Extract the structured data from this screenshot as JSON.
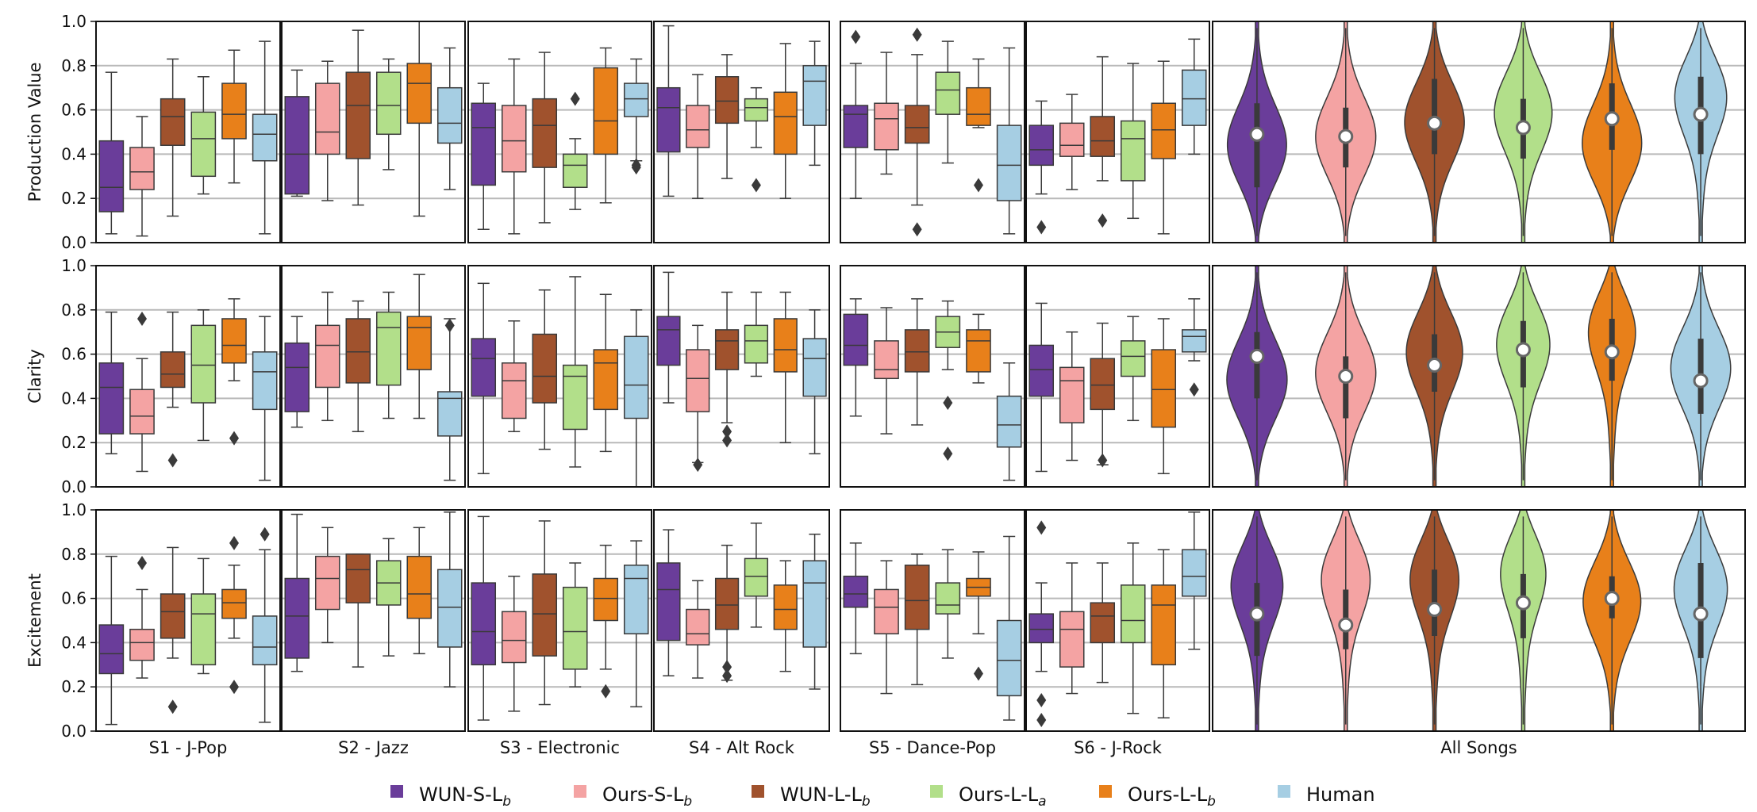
{
  "chart_data": {
    "type": "box",
    "title": "",
    "ylim": [
      0,
      1
    ],
    "yticks": [
      "0.0",
      "0.2",
      "0.4",
      "0.6",
      "0.8",
      "1.0"
    ],
    "grid": true,
    "metrics": [
      "Production Value",
      "Clarity",
      "Excitement"
    ],
    "songs": [
      "S1 - J-Pop",
      "S2 - Jazz",
      "S3 - Electronic",
      "S4 - Alt Rock",
      "S5 - Dance-Pop",
      "S6 - J-Rock"
    ],
    "all_label": "All Songs",
    "systems": [
      {
        "name": "WUN-S-L",
        "sub": "b",
        "color": "#6a3d9a"
      },
      {
        "name": "Ours-S-L",
        "sub": "b",
        "color": "#f4a3a3"
      },
      {
        "name": "WUN-L-L",
        "sub": "b",
        "color": "#a0522d"
      },
      {
        "name": "Ours-L-L",
        "sub": "a",
        "color": "#b2df8a"
      },
      {
        "name": "Ours-L-L",
        "sub": "b",
        "color": "#e8801a"
      },
      {
        "name": "Human",
        "sub": "",
        "color": "#a6cee3"
      }
    ],
    "boxes": [
      [
        [
          [
            0.04,
            0.14,
            0.25,
            0.46,
            0.77,
            []
          ],
          [
            0.03,
            0.24,
            0.32,
            0.43,
            0.57,
            []
          ],
          [
            0.12,
            0.44,
            0.57,
            0.65,
            0.83,
            []
          ],
          [
            0.22,
            0.3,
            0.47,
            0.59,
            0.75,
            []
          ],
          [
            0.27,
            0.47,
            0.58,
            0.72,
            0.87,
            []
          ],
          [
            0.04,
            0.37,
            0.49,
            0.58,
            0.91,
            []
          ]
        ],
        [
          [
            0.21,
            0.22,
            0.4,
            0.66,
            0.78,
            []
          ],
          [
            0.19,
            0.4,
            0.5,
            0.72,
            0.82,
            []
          ],
          [
            0.17,
            0.38,
            0.62,
            0.77,
            0.96,
            []
          ],
          [
            0.33,
            0.49,
            0.62,
            0.77,
            0.83,
            []
          ],
          [
            0.12,
            0.54,
            0.72,
            0.81,
            1.0,
            []
          ],
          [
            0.24,
            0.45,
            0.54,
            0.7,
            0.88,
            []
          ]
        ],
        [
          [
            0.06,
            0.26,
            0.52,
            0.63,
            0.72,
            []
          ],
          [
            0.04,
            0.32,
            0.46,
            0.62,
            0.83,
            []
          ],
          [
            0.09,
            0.34,
            0.53,
            0.65,
            0.86,
            []
          ],
          [
            0.15,
            0.25,
            0.35,
            0.4,
            0.47,
            [
              0.65
            ]
          ],
          [
            0.18,
            0.4,
            0.55,
            0.79,
            0.88,
            []
          ],
          [
            0.37,
            0.57,
            0.65,
            0.72,
            0.83,
            [
              0.34,
              0.35
            ]
          ]
        ],
        [
          [
            0.21,
            0.41,
            0.61,
            0.7,
            0.98,
            []
          ],
          [
            0.2,
            0.43,
            0.51,
            0.62,
            0.76,
            []
          ],
          [
            0.29,
            0.54,
            0.64,
            0.75,
            0.85,
            []
          ],
          [
            0.43,
            0.55,
            0.61,
            0.65,
            0.7,
            [
              0.26
            ]
          ],
          [
            0.2,
            0.4,
            0.57,
            0.68,
            0.9,
            []
          ],
          [
            0.35,
            0.53,
            0.73,
            0.8,
            0.91,
            []
          ]
        ],
        [
          [
            0.2,
            0.43,
            0.58,
            0.62,
            0.81,
            [
              0.93
            ]
          ],
          [
            0.31,
            0.42,
            0.56,
            0.63,
            0.86,
            []
          ],
          [
            0.17,
            0.45,
            0.52,
            0.62,
            0.85,
            [
              0.94,
              0.06
            ]
          ],
          [
            0.36,
            0.58,
            0.69,
            0.77,
            0.91,
            []
          ],
          [
            0.52,
            0.53,
            0.58,
            0.7,
            0.83,
            [
              0.26
            ]
          ],
          [
            0.04,
            0.19,
            0.35,
            0.53,
            0.88,
            []
          ]
        ],
        [
          [
            0.22,
            0.35,
            0.42,
            0.53,
            0.64,
            [
              0.07
            ]
          ],
          [
            0.24,
            0.39,
            0.44,
            0.54,
            0.67,
            []
          ],
          [
            0.28,
            0.39,
            0.46,
            0.57,
            0.84,
            [
              0.1
            ]
          ],
          [
            0.11,
            0.28,
            0.47,
            0.55,
            0.81,
            []
          ],
          [
            0.04,
            0.38,
            0.51,
            0.63,
            0.82,
            []
          ],
          [
            0.4,
            0.53,
            0.65,
            0.78,
            0.92,
            []
          ]
        ]
      ],
      [
        [
          [
            0.15,
            0.24,
            0.45,
            0.56,
            0.79,
            []
          ],
          [
            0.07,
            0.24,
            0.32,
            0.44,
            0.58,
            [
              0.76
            ]
          ],
          [
            0.36,
            0.45,
            0.51,
            0.61,
            0.79,
            [
              0.12
            ]
          ],
          [
            0.21,
            0.38,
            0.55,
            0.73,
            0.8,
            []
          ],
          [
            0.48,
            0.56,
            0.64,
            0.76,
            0.85,
            [
              0.22
            ]
          ],
          [
            0.03,
            0.35,
            0.52,
            0.61,
            0.77,
            []
          ]
        ],
        [
          [
            0.27,
            0.34,
            0.54,
            0.65,
            0.77,
            []
          ],
          [
            0.3,
            0.45,
            0.64,
            0.73,
            0.88,
            []
          ],
          [
            0.25,
            0.47,
            0.61,
            0.76,
            0.84,
            []
          ],
          [
            0.31,
            0.46,
            0.72,
            0.79,
            0.88,
            []
          ],
          [
            0.31,
            0.53,
            0.72,
            0.77,
            0.96,
            []
          ],
          [
            0.03,
            0.23,
            0.4,
            0.43,
            0.76,
            [
              0.73
            ]
          ]
        ],
        [
          [
            0.06,
            0.41,
            0.58,
            0.67,
            0.92,
            []
          ],
          [
            0.25,
            0.31,
            0.48,
            0.56,
            0.75,
            []
          ],
          [
            0.17,
            0.38,
            0.5,
            0.69,
            0.89,
            []
          ],
          [
            0.09,
            0.26,
            0.5,
            0.55,
            0.95,
            []
          ],
          [
            0.16,
            0.35,
            0.56,
            0.62,
            0.87,
            []
          ],
          [
            0.0,
            0.31,
            0.46,
            0.68,
            0.8,
            []
          ]
        ],
        [
          [
            0.38,
            0.55,
            0.71,
            0.77,
            0.97,
            []
          ],
          [
            0.11,
            0.34,
            0.49,
            0.62,
            0.73,
            [
              0.1
            ]
          ],
          [
            0.29,
            0.53,
            0.66,
            0.71,
            0.88,
            [
              0.25,
              0.21
            ]
          ],
          [
            0.5,
            0.56,
            0.66,
            0.73,
            0.88,
            []
          ],
          [
            0.2,
            0.52,
            0.62,
            0.76,
            0.88,
            []
          ],
          [
            0.15,
            0.41,
            0.58,
            0.67,
            0.8,
            []
          ]
        ],
        [
          [
            0.32,
            0.55,
            0.64,
            0.78,
            0.85,
            []
          ],
          [
            0.24,
            0.49,
            0.53,
            0.66,
            0.81,
            []
          ],
          [
            0.28,
            0.52,
            0.61,
            0.71,
            0.85,
            []
          ],
          [
            0.53,
            0.63,
            0.7,
            0.77,
            0.84,
            [
              0.38,
              0.15
            ]
          ],
          [
            0.47,
            0.52,
            0.66,
            0.71,
            0.78,
            []
          ],
          [
            0.03,
            0.18,
            0.28,
            0.41,
            0.56,
            []
          ]
        ],
        [
          [
            0.07,
            0.41,
            0.53,
            0.64,
            0.83,
            []
          ],
          [
            0.12,
            0.29,
            0.48,
            0.54,
            0.7,
            []
          ],
          [
            0.1,
            0.35,
            0.46,
            0.58,
            0.74,
            [
              0.12
            ]
          ],
          [
            0.3,
            0.5,
            0.59,
            0.66,
            0.77,
            []
          ],
          [
            0.06,
            0.27,
            0.44,
            0.62,
            0.76,
            []
          ],
          [
            0.57,
            0.61,
            0.68,
            0.71,
            0.85,
            [
              0.44
            ]
          ]
        ]
      ],
      [
        [
          [
            0.03,
            0.26,
            0.35,
            0.48,
            0.79,
            []
          ],
          [
            0.24,
            0.32,
            0.4,
            0.46,
            0.64,
            [
              0.76
            ]
          ],
          [
            0.33,
            0.42,
            0.54,
            0.62,
            0.83,
            [
              0.11
            ]
          ],
          [
            0.26,
            0.3,
            0.53,
            0.62,
            0.78,
            []
          ],
          [
            0.42,
            0.51,
            0.58,
            0.64,
            0.75,
            [
              0.85,
              0.2
            ]
          ],
          [
            0.04,
            0.3,
            0.38,
            0.52,
            0.82,
            [
              0.89
            ]
          ]
        ],
        [
          [
            0.27,
            0.33,
            0.52,
            0.69,
            0.98,
            []
          ],
          [
            0.4,
            0.55,
            0.69,
            0.79,
            0.92,
            []
          ],
          [
            0.29,
            0.58,
            0.73,
            0.8,
            0.8,
            []
          ],
          [
            0.34,
            0.57,
            0.67,
            0.77,
            0.87,
            []
          ],
          [
            0.35,
            0.51,
            0.62,
            0.79,
            0.92,
            []
          ],
          [
            0.2,
            0.38,
            0.56,
            0.73,
            0.99,
            []
          ]
        ],
        [
          [
            0.05,
            0.3,
            0.45,
            0.67,
            0.97,
            []
          ],
          [
            0.09,
            0.31,
            0.41,
            0.54,
            0.7,
            []
          ],
          [
            0.12,
            0.34,
            0.53,
            0.71,
            0.95,
            []
          ],
          [
            0.2,
            0.28,
            0.45,
            0.65,
            0.76,
            []
          ],
          [
            0.28,
            0.5,
            0.6,
            0.69,
            0.84,
            [
              0.18
            ]
          ],
          [
            0.11,
            0.44,
            0.69,
            0.75,
            0.86,
            []
          ]
        ],
        [
          [
            0.25,
            0.41,
            0.64,
            0.76,
            0.91,
            []
          ],
          [
            0.24,
            0.39,
            0.44,
            0.55,
            0.68,
            []
          ],
          [
            0.23,
            0.46,
            0.57,
            0.69,
            0.84,
            [
              0.29,
              0.25
            ]
          ],
          [
            0.47,
            0.61,
            0.7,
            0.78,
            0.94,
            []
          ],
          [
            0.27,
            0.46,
            0.55,
            0.66,
            0.77,
            []
          ],
          [
            0.19,
            0.38,
            0.67,
            0.77,
            0.89,
            []
          ]
        ],
        [
          [
            0.35,
            0.56,
            0.62,
            0.7,
            0.85,
            []
          ],
          [
            0.17,
            0.44,
            0.56,
            0.64,
            0.77,
            []
          ],
          [
            0.21,
            0.46,
            0.59,
            0.75,
            0.8,
            []
          ],
          [
            0.33,
            0.53,
            0.57,
            0.67,
            0.82,
            []
          ],
          [
            0.44,
            0.61,
            0.65,
            0.69,
            0.81,
            [
              0.26
            ]
          ],
          [
            0.05,
            0.16,
            0.32,
            0.5,
            0.88,
            []
          ]
        ],
        [
          [
            0.27,
            0.4,
            0.46,
            0.53,
            0.67,
            [
              0.92,
              0.14,
              0.05
            ]
          ],
          [
            0.17,
            0.29,
            0.46,
            0.54,
            0.76,
            []
          ],
          [
            0.22,
            0.4,
            0.52,
            0.58,
            0.76,
            []
          ],
          [
            0.08,
            0.4,
            0.5,
            0.66,
            0.85,
            []
          ],
          [
            0.06,
            0.3,
            0.57,
            0.66,
            0.82,
            []
          ],
          [
            0.37,
            0.61,
            0.7,
            0.82,
            0.99,
            []
          ]
        ]
      ]
    ],
    "violins": [
      [
        [
          0.49,
          0.25,
          0.63,
          0.42
        ],
        [
          0.48,
          0.34,
          0.61,
          0.47
        ],
        [
          0.54,
          0.4,
          0.74,
          0.56
        ],
        [
          0.52,
          0.38,
          0.65,
          0.62
        ],
        [
          0.56,
          0.42,
          0.72,
          0.43
        ],
        [
          0.58,
          0.4,
          0.75,
          0.72
        ]
      ],
      [
        [
          0.59,
          0.4,
          0.7,
          0.48
        ],
        [
          0.5,
          0.31,
          0.59,
          0.52
        ],
        [
          0.55,
          0.43,
          0.69,
          0.65
        ],
        [
          0.62,
          0.45,
          0.75,
          0.7
        ],
        [
          0.61,
          0.48,
          0.76,
          0.78
        ],
        [
          0.48,
          0.33,
          0.67,
          0.55
        ]
      ],
      [
        [
          0.53,
          0.34,
          0.67,
          0.72
        ],
        [
          0.48,
          0.37,
          0.64,
          0.76
        ],
        [
          0.55,
          0.43,
          0.73,
          0.76
        ],
        [
          0.58,
          0.42,
          0.71,
          0.8
        ],
        [
          0.6,
          0.51,
          0.7,
          0.62
        ],
        [
          0.53,
          0.33,
          0.76,
          0.7
        ]
      ]
    ]
  }
}
